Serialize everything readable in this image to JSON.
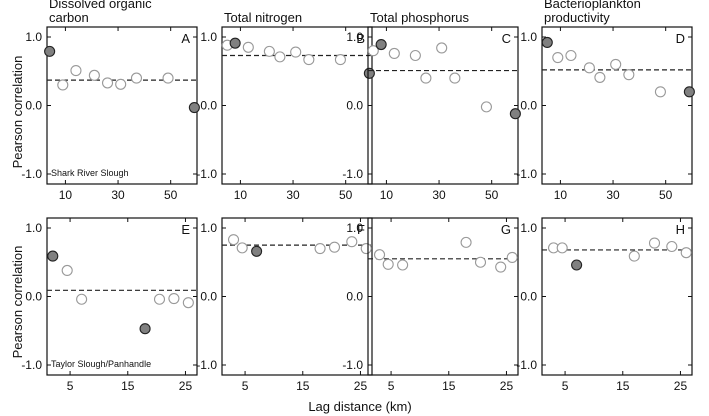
{
  "figure": {
    "y_axis_label": "Pearson correlation",
    "x_axis_label": "Lag distance (km)"
  },
  "chart_data": [
    {
      "type": "scatter",
      "panel": "A",
      "title": "Dissolved organic carbon",
      "annotation": "Shark River Slough",
      "xlim": [
        3,
        60
      ],
      "ylim": [
        -1.0,
        1.0
      ],
      "xticks": [
        10,
        30,
        50
      ],
      "yticks": [
        -1.0,
        0.0,
        1.0
      ],
      "mean_line": 0.37,
      "series": [
        {
          "filled": false,
          "x": [
            9,
            14,
            21,
            26,
            31,
            37,
            49
          ],
          "y": [
            0.3,
            0.51,
            0.44,
            0.33,
            0.31,
            0.4,
            0.4
          ]
        },
        {
          "filled": true,
          "x": [
            4,
            59
          ],
          "y": [
            0.79,
            -0.03
          ]
        }
      ]
    },
    {
      "type": "scatter",
      "panel": "B",
      "title": "Total nitrogen",
      "annotation": "",
      "xlim": [
        3,
        60
      ],
      "ylim": [
        -1.0,
        1.0
      ],
      "xticks": [
        10,
        30,
        50
      ],
      "yticks": [
        -1.0,
        0.0,
        1.0
      ],
      "mean_line": 0.73,
      "series": [
        {
          "filled": false,
          "x": [
            5,
            13,
            21,
            25,
            31,
            36,
            48
          ],
          "y": [
            0.88,
            0.85,
            0.79,
            0.71,
            0.78,
            0.67,
            0.67
          ]
        },
        {
          "filled": true,
          "x": [
            8,
            59
          ],
          "y": [
            0.91,
            0.47
          ]
        }
      ]
    },
    {
      "type": "scatter",
      "panel": "C",
      "title": "Total phosphorus",
      "annotation": "",
      "xlim": [
        3,
        60
      ],
      "ylim": [
        -1.0,
        1.0
      ],
      "xticks": [
        10,
        30,
        50
      ],
      "yticks": [
        -1.0,
        0.0,
        1.0
      ],
      "mean_line": 0.51,
      "series": [
        {
          "filled": false,
          "x": [
            5,
            13,
            21,
            25,
            31,
            36,
            48
          ],
          "y": [
            0.8,
            0.76,
            0.73,
            0.4,
            0.84,
            0.4,
            -0.02
          ]
        },
        {
          "filled": true,
          "x": [
            8,
            59
          ],
          "y": [
            0.89,
            -0.12
          ]
        }
      ]
    },
    {
      "type": "scatter",
      "panel": "D",
      "title": "Bacterioplankton productivity",
      "annotation": "",
      "xlim": [
        3,
        60
      ],
      "ylim": [
        -1.0,
        1.0
      ],
      "xticks": [
        10,
        30,
        50
      ],
      "yticks": [
        -1.0,
        0.0,
        1.0
      ],
      "mean_line": 0.52,
      "series": [
        {
          "filled": false,
          "x": [
            9,
            14,
            21,
            25,
            31,
            36,
            48
          ],
          "y": [
            0.7,
            0.73,
            0.55,
            0.41,
            0.6,
            0.45,
            0.2
          ]
        },
        {
          "filled": true,
          "x": [
            5,
            59
          ],
          "y": [
            0.92,
            0.2
          ]
        }
      ]
    },
    {
      "type": "scatter",
      "panel": "E",
      "title": "",
      "annotation": "Taylor Slough/Panhandle",
      "xlim": [
        1,
        27
      ],
      "ylim": [
        -1.0,
        1.0
      ],
      "xticks": [
        5,
        15,
        25
      ],
      "yticks": [
        -1.0,
        0.0,
        1.0
      ],
      "mean_line": 0.09,
      "series": [
        {
          "filled": false,
          "x": [
            4.5,
            7,
            20.5,
            23,
            25.5
          ],
          "y": [
            0.38,
            -0.04,
            -0.04,
            -0.03,
            -0.09
          ]
        },
        {
          "filled": true,
          "x": [
            2,
            18
          ],
          "y": [
            0.59,
            -0.47
          ]
        }
      ]
    },
    {
      "type": "scatter",
      "panel": "F",
      "title": "",
      "annotation": "",
      "xlim": [
        1,
        27
      ],
      "ylim": [
        -1.0,
        1.0
      ],
      "xticks": [
        5,
        15,
        25
      ],
      "yticks": [
        -1.0,
        0.0,
        1.0
      ],
      "mean_line": 0.75,
      "series": [
        {
          "filled": false,
          "x": [
            3,
            4.5,
            18,
            20.5,
            23.5,
            26
          ],
          "y": [
            0.83,
            0.71,
            0.7,
            0.72,
            0.8,
            0.7
          ]
        },
        {
          "filled": true,
          "x": [
            7
          ],
          "y": [
            0.66
          ]
        }
      ]
    },
    {
      "type": "scatter",
      "panel": "G",
      "title": "",
      "annotation": "",
      "xlim": [
        1,
        27
      ],
      "ylim": [
        -1.0,
        1.0
      ],
      "xticks": [
        5,
        15,
        25
      ],
      "yticks": [
        -1.0,
        0.0,
        1.0
      ],
      "mean_line": 0.55,
      "series": [
        {
          "filled": false,
          "x": [
            3,
            4.5,
            7,
            18,
            20.5,
            24,
            26
          ],
          "y": [
            0.61,
            0.47,
            0.46,
            0.79,
            0.5,
            0.43,
            0.57
          ]
        }
      ]
    },
    {
      "type": "scatter",
      "panel": "H",
      "title": "",
      "annotation": "",
      "xlim": [
        1,
        27
      ],
      "ylim": [
        -1.0,
        1.0
      ],
      "xticks": [
        5,
        15,
        25
      ],
      "yticks": [
        -1.0,
        0.0,
        1.0
      ],
      "mean_line": 0.68,
      "series": [
        {
          "filled": false,
          "x": [
            3,
            4.5,
            17,
            20.5,
            23.5,
            26
          ],
          "y": [
            0.71,
            0.71,
            0.59,
            0.78,
            0.73,
            0.64
          ]
        },
        {
          "filled": true,
          "x": [
            7
          ],
          "y": [
            0.46
          ]
        }
      ]
    }
  ]
}
